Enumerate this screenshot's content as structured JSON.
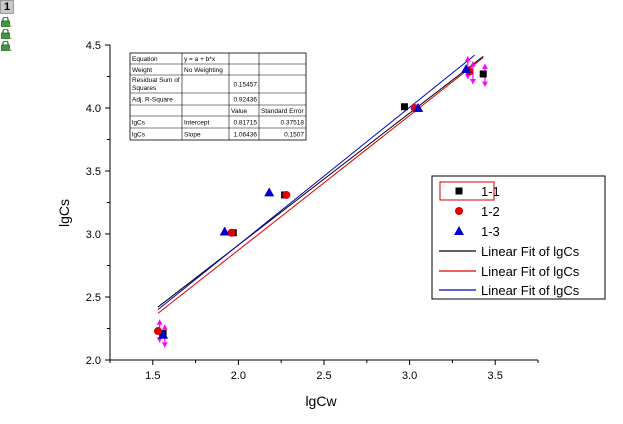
{
  "page_badge": "1",
  "side_icons": [
    "lock-icon",
    "lock-icon",
    "lock-icon"
  ],
  "colors": {
    "series_1_1": "#000000",
    "series_1_2": "#e00000",
    "series_1_3": "#0000d0",
    "error_bars": "#ff00ff",
    "fit_1": "#000000",
    "fit_2": "#e00000",
    "fit_3": "#0000c0"
  },
  "fit_table": {
    "rows": [
      [
        "Equation",
        "y = a + b*x",
        "",
        ""
      ],
      [
        "Weight",
        "No Weighting",
        "",
        ""
      ],
      [
        "Residual Sum of Squares",
        "",
        "0.15457",
        ""
      ],
      [
        "Adj. R-Square",
        "",
        "0.92436",
        ""
      ],
      [
        "",
        "",
        "Value",
        "Standard Error"
      ],
      [
        "lgCs",
        "Intercept",
        "0.81715",
        "0.37518"
      ],
      [
        "lgCs",
        "Slope",
        "1.06436",
        "0.1507"
      ]
    ]
  },
  "chart_data": {
    "type": "scatter",
    "xlabel": "lgCw",
    "ylabel": "lgCs",
    "xlim": [
      1.25,
      3.75
    ],
    "ylim": [
      2.0,
      4.5
    ],
    "x_ticks": [
      "1.5",
      "2.0",
      "2.5",
      "3.0",
      "3.5"
    ],
    "y_ticks": [
      "2.0",
      "2.5",
      "3.0",
      "3.5",
      "4.0",
      "4.5"
    ],
    "grid": false,
    "legend_position": "right",
    "series": [
      {
        "name": "1-1",
        "marker": "square",
        "color": "#000000",
        "points": [
          [
            1.56,
            2.21
          ],
          [
            1.97,
            3.01
          ],
          [
            2.27,
            3.31
          ],
          [
            2.97,
            4.01
          ],
          [
            3.43,
            4.27
          ]
        ]
      },
      {
        "name": "1-2",
        "marker": "circle",
        "color": "#e00000",
        "points": [
          [
            1.53,
            2.23
          ],
          [
            1.96,
            3.01
          ],
          [
            2.28,
            3.31
          ],
          [
            3.03,
            4.0
          ],
          [
            3.35,
            4.29
          ]
        ]
      },
      {
        "name": "1-3",
        "marker": "triangle",
        "color": "#0000d0",
        "points": [
          [
            1.56,
            2.2
          ],
          [
            1.92,
            3.02
          ],
          [
            2.18,
            3.33
          ],
          [
            3.05,
            4.0
          ],
          [
            3.33,
            4.31
          ]
        ]
      }
    ],
    "error_bars": [
      {
        "x": 1.54,
        "y": 2.23,
        "dy": 0.09
      },
      {
        "x": 1.57,
        "y": 2.19,
        "dy": 0.09
      },
      {
        "x": 3.34,
        "y": 4.32,
        "dy": 0.09
      },
      {
        "x": 3.37,
        "y": 4.28,
        "dy": 0.09
      },
      {
        "x": 3.44,
        "y": 4.26,
        "dy": 0.09
      }
    ],
    "fits": [
      {
        "name": "Linear Fit of lgCs",
        "color": "#000000",
        "x": [
          1.53,
          3.43
        ],
        "y": [
          2.42,
          4.41
        ]
      },
      {
        "name": "Linear Fit of lgCs",
        "color": "#e00000",
        "x": [
          1.53,
          3.43
        ],
        "y": [
          2.37,
          4.4
        ]
      },
      {
        "name": "Linear Fit of lgCs",
        "color": "#0000c0",
        "x": [
          1.53,
          3.38
        ],
        "y": [
          2.4,
          4.42
        ]
      }
    ]
  }
}
